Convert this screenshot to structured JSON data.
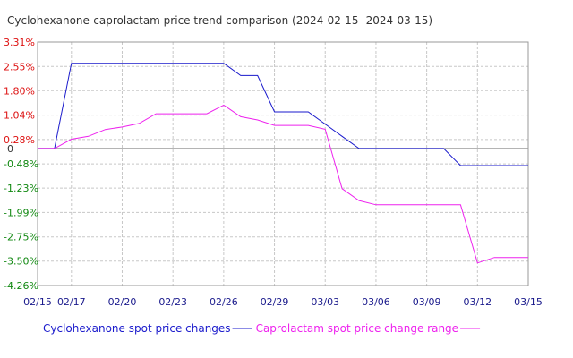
{
  "chart_data": {
    "type": "line",
    "title": "Cyclohexanone-caprolactam price trend comparison (2024-02-15- 2024-03-15)",
    "xlabel": "",
    "ylabel": "",
    "x": [
      "02/15",
      "02/16",
      "02/17",
      "02/18",
      "02/19",
      "02/20",
      "02/21",
      "02/22",
      "02/23",
      "02/24",
      "02/25",
      "02/26",
      "02/27",
      "02/28",
      "02/29",
      "03/01",
      "03/02",
      "03/03",
      "03/04",
      "03/05",
      "03/06",
      "03/07",
      "03/08",
      "03/09",
      "03/10",
      "03/11",
      "03/12",
      "03/13",
      "03/14",
      "03/15"
    ],
    "x_tick_labels": [
      "02/15",
      "02/17",
      "02/20",
      "02/23",
      "02/26",
      "02/29",
      "03/03",
      "03/06",
      "03/09",
      "03/12",
      "03/15"
    ],
    "y_tick_labels": [
      "3.31%",
      "2.55%",
      "1.80%",
      "1.04%",
      "0.28%",
      "0",
      "-0.48%",
      "-1.23%",
      "-1.99%",
      "-2.75%",
      "-3.50%",
      "-4.26%"
    ],
    "y_tick_values": [
      3.31,
      2.55,
      1.8,
      1.04,
      0.28,
      0,
      -0.48,
      -1.23,
      -1.99,
      -2.75,
      -3.5,
      -4.26
    ],
    "ylim": [
      -4.26,
      3.31
    ],
    "grid": true,
    "legend_placement": "bottom",
    "series": [
      {
        "name": "Cyclohexanone spot price changes",
        "color": "#1a1acc",
        "values": [
          0,
          0,
          2.65,
          2.65,
          2.65,
          2.65,
          2.65,
          2.65,
          2.65,
          2.65,
          2.65,
          2.65,
          2.27,
          2.27,
          1.14,
          1.14,
          1.14,
          0.76,
          0.38,
          0,
          0,
          0,
          0,
          0,
          0,
          -0.53,
          -0.53,
          -0.53,
          -0.53,
          -0.53
        ]
      },
      {
        "name": "Caprolactam spot price change range",
        "color": "#ee22ee",
        "values": [
          0,
          0,
          0.29,
          0.38,
          0.59,
          0.67,
          0.78,
          1.08,
          1.08,
          1.08,
          1.08,
          1.35,
          0.99,
          0.89,
          0.72,
          0.72,
          0.72,
          0.6,
          -1.25,
          -1.62,
          -1.75,
          -1.75,
          -1.75,
          -1.75,
          -1.75,
          -1.75,
          -3.56,
          -3.39,
          -3.39,
          -3.39
        ]
      }
    ]
  }
}
